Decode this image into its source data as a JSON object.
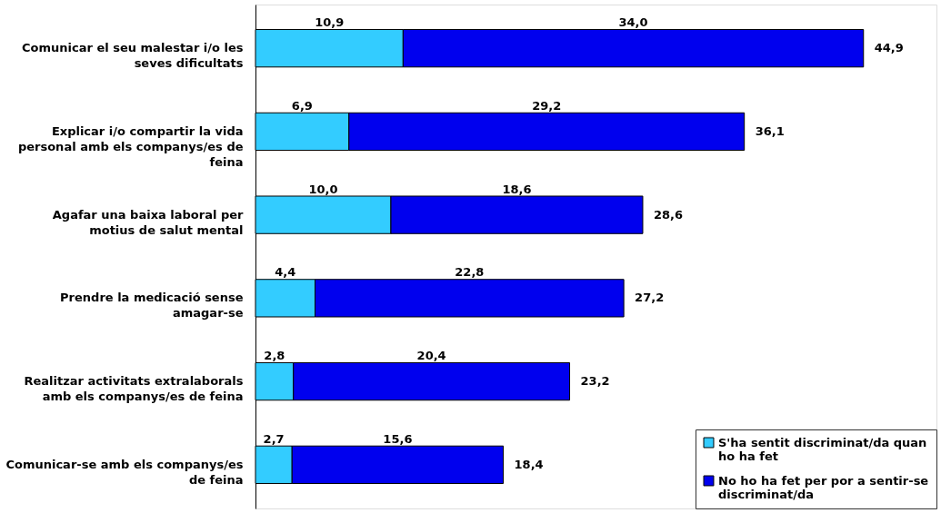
{
  "chart_data": {
    "type": "bar",
    "orientation": "horizontal",
    "stacked": true,
    "categories": [
      "Comunicar el seu malestar i/o les seves dificultats",
      "Explicar i/o compartir la vida personal amb els companys/es de feina",
      "Agafar una baixa laboral per motius de salut mental",
      "Prendre la medicació sense amagar-se",
      "Realitzar activitats extralaborals amb els companys/es de feina",
      "Comunicar-se amb els companys/es de feina"
    ],
    "series": [
      {
        "name": "S'ha sentit discriminat/da quan ho ha fet",
        "color": "#33ccff",
        "values": [
          10.9,
          6.9,
          10.0,
          4.4,
          2.8,
          2.7
        ],
        "value_labels": [
          "10,9",
          "6,9",
          "10,0",
          "4,4",
          "2,8",
          "2,7"
        ]
      },
      {
        "name": "No ho ha fet per por a sentir-se discriminat/da",
        "color": "#0000ee",
        "values": [
          34.0,
          29.2,
          18.6,
          22.8,
          20.4,
          15.6
        ],
        "value_labels": [
          "34,0",
          "29,2",
          "18,6",
          "22,8",
          "20,4",
          "15,6"
        ]
      }
    ],
    "totals": [
      "44,9",
      "36,1",
      "28,6",
      "27,2",
      "23,2",
      "18,4"
    ],
    "legend": "bottom right"
  }
}
